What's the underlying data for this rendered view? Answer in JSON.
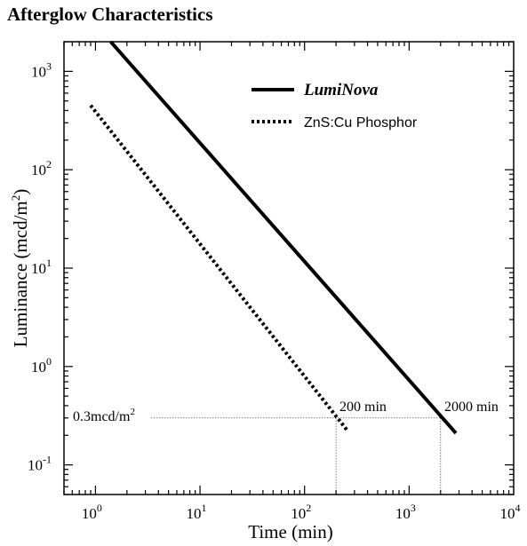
{
  "chart_data": {
    "type": "line",
    "title": "Afterglow Characteristics",
    "xlabel": "Time (min)",
    "ylabel_main": "Luminance (mcd/m",
    "ylabel_sup": "2",
    "ylabel_close": ")",
    "xscale": "log",
    "yscale": "log",
    "xlim": [
      0.5,
      10000
    ],
    "ylim": [
      0.05,
      2000
    ],
    "x_ticks": [
      {
        "value": 1,
        "base": "10",
        "exp": "0"
      },
      {
        "value": 10,
        "base": "10",
        "exp": "1"
      },
      {
        "value": 100,
        "base": "10",
        "exp": "2"
      },
      {
        "value": 1000,
        "base": "10",
        "exp": "3"
      },
      {
        "value": 10000,
        "base": "10",
        "exp": "4"
      }
    ],
    "y_ticks": [
      {
        "value": 0.1,
        "base": "10",
        "exp": "-1"
      },
      {
        "value": 1,
        "base": "10",
        "exp": "0"
      },
      {
        "value": 10,
        "base": "10",
        "exp": "1"
      },
      {
        "value": 100,
        "base": "10",
        "exp": "2"
      },
      {
        "value": 1000,
        "base": "10",
        "exp": "3"
      }
    ],
    "grid": false,
    "legend_position": "top-right",
    "series": [
      {
        "name": "LumiNova",
        "style": "solid",
        "color": "#000000",
        "x": [
          1.4,
          2800
        ],
        "y": [
          2000,
          0.21
        ]
      },
      {
        "name": "ZnS:Cu Phosphor",
        "style": "dotted",
        "color": "#000000",
        "x": [
          0.9,
          260
        ],
        "y": [
          450,
          0.22
        ]
      }
    ],
    "annotations": {
      "hline_value": 0.3,
      "hline_label_main": "0.3mcd/m",
      "hline_label_sup": "2",
      "markers": [
        {
          "x": 200,
          "label": "200 min"
        },
        {
          "x": 2000,
          "label": "2000 min"
        }
      ]
    }
  }
}
